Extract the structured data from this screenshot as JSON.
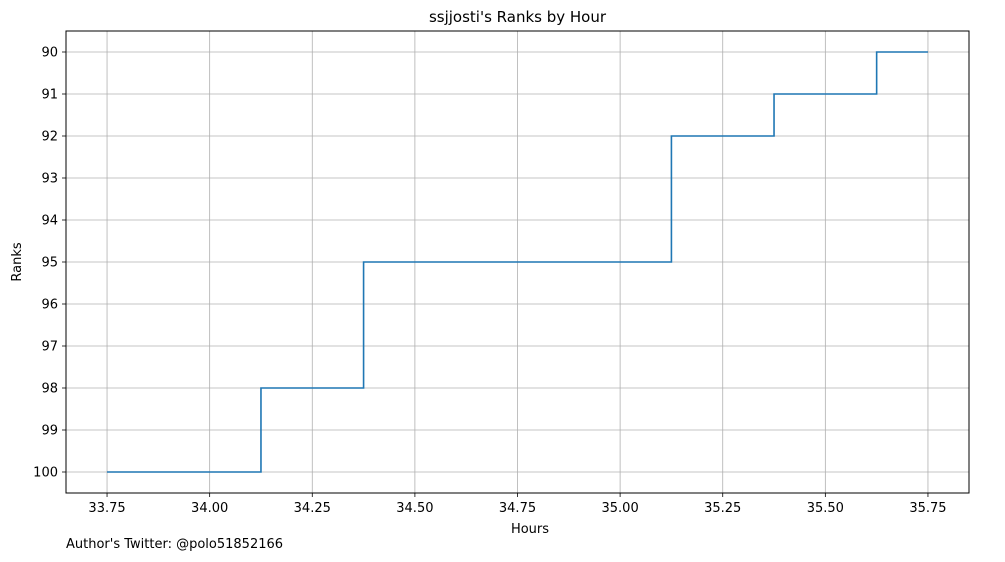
{
  "chart_data": {
    "type": "line",
    "drawstyle": "steps-post",
    "title": "ssjjosti's Ranks by Hour",
    "xlabel": "Hours",
    "ylabel": "Ranks",
    "xlim": [
      33.65,
      35.85
    ],
    "ylim": [
      100.5,
      89.5
    ],
    "y_inverted": true,
    "grid": true,
    "line_color": "#1f77b4",
    "xticks": [
      33.75,
      34.0,
      34.25,
      34.5,
      34.75,
      35.0,
      35.25,
      35.5,
      35.75
    ],
    "xtick_labels": [
      "33.75",
      "34.00",
      "34.25",
      "34.50",
      "34.75",
      "35.00",
      "35.25",
      "35.50",
      "35.75"
    ],
    "yticks": [
      90,
      91,
      92,
      93,
      94,
      95,
      96,
      97,
      98,
      99,
      100
    ],
    "ytick_labels": [
      "90",
      "91",
      "92",
      "93",
      "94",
      "95",
      "96",
      "97",
      "98",
      "99",
      "100"
    ],
    "series": [
      {
        "x": [
          33.75,
          34.125,
          34.375,
          35.125,
          35.375,
          35.625,
          35.75
        ],
        "y": [
          100,
          98,
          95,
          92,
          91,
          90,
          90
        ]
      }
    ]
  },
  "footer": {
    "text": "Author's Twitter: @polo51852166"
  }
}
